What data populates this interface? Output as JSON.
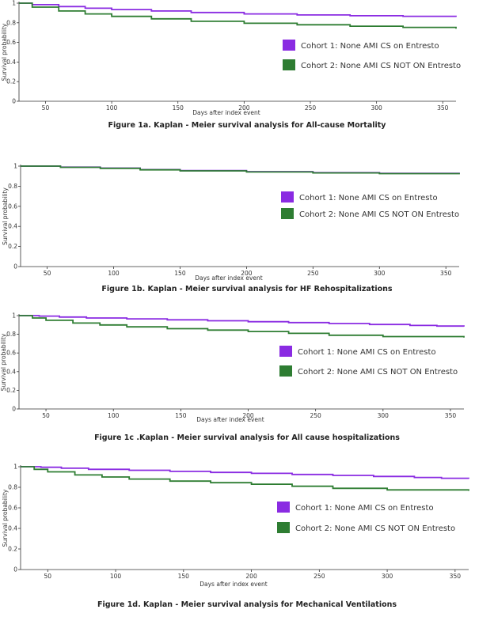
{
  "colors": {
    "cohort1": "#8a2be2",
    "cohort2": "#2e7d32"
  },
  "chart_data": [
    {
      "type": "line",
      "caption": "Figure 1a. Kaplan - Meier survival analysis for All-cause Mortality",
      "xlabel": "Days after index event",
      "ylabel": "Survival probability",
      "xlim": [
        30,
        360
      ],
      "ylim": [
        0,
        1
      ],
      "xticks": [
        50,
        100,
        150,
        200,
        250,
        300,
        350
      ],
      "yticks": [
        0,
        0.2,
        0.4,
        0.6,
        0.8,
        1
      ],
      "ytick_labels": [
        "0",
        "0.2",
        "0.4",
        "0.6",
        "0.8",
        "1"
      ],
      "legend": [
        "Cohort 1: None AMI CS on Entresto",
        "Cohort 2: None AMI CS NOT ON Entresto"
      ],
      "series": [
        {
          "name": "Cohort 1: None AMI CS on Entresto",
          "x": [
            30,
            40,
            60,
            80,
            100,
            130,
            160,
            200,
            240,
            280,
            320,
            360
          ],
          "y": [
            1.0,
            0.985,
            0.965,
            0.948,
            0.935,
            0.92,
            0.905,
            0.89,
            0.88,
            0.872,
            0.866,
            0.86
          ]
        },
        {
          "name": "Cohort 2: None AMI CS NOT ON Entresto",
          "x": [
            30,
            40,
            60,
            80,
            100,
            130,
            160,
            200,
            240,
            280,
            320,
            360
          ],
          "y": [
            1.0,
            0.96,
            0.92,
            0.89,
            0.865,
            0.84,
            0.815,
            0.795,
            0.78,
            0.765,
            0.753,
            0.74
          ]
        }
      ]
    },
    {
      "type": "line",
      "caption": "Figure 1b. Kaplan - Meier survival analysis for HF Rehospitalizations",
      "xlabel": "Days after index event",
      "ylabel": "Survival probability",
      "xlim": [
        30,
        360
      ],
      "ylim": [
        0,
        1
      ],
      "xticks": [
        50,
        100,
        150,
        200,
        250,
        300,
        350
      ],
      "yticks": [
        0,
        0.2,
        0.4,
        0.6,
        0.8,
        1
      ],
      "ytick_labels": [
        "0",
        "0.2",
        "0.4",
        "0.6",
        "0.8",
        "1"
      ],
      "legend": [
        "Cohort 1: None AMI CS on Entresto",
        "Cohort 2: None AMI CS NOT ON Entresto"
      ],
      "series": [
        {
          "name": "Cohort 1: None AMI CS on Entresto",
          "x": [
            30,
            60,
            90,
            120,
            150,
            200,
            250,
            300,
            360
          ],
          "y": [
            1.0,
            0.99,
            0.98,
            0.965,
            0.955,
            0.945,
            0.935,
            0.928,
            0.922
          ]
        },
        {
          "name": "Cohort 2: None AMI CS NOT ON Entresto",
          "x": [
            30,
            60,
            90,
            120,
            150,
            200,
            250,
            300,
            360
          ],
          "y": [
            1.0,
            0.988,
            0.978,
            0.963,
            0.953,
            0.942,
            0.932,
            0.925,
            0.918
          ]
        }
      ]
    },
    {
      "type": "line",
      "caption": "Figure 1c .Kaplan - Meier survival analysis for All cause hospitalizations",
      "xlabel": "Days after index event",
      "ylabel": "Survival probability",
      "xlim": [
        30,
        360
      ],
      "ylim": [
        0,
        1
      ],
      "xticks": [
        50,
        100,
        150,
        200,
        250,
        300,
        350
      ],
      "yticks": [
        0,
        0.2,
        0.4,
        0.6,
        0.8,
        1
      ],
      "ytick_labels": [
        "0",
        "0.2",
        "0.4",
        "0.6",
        "0.8",
        "1"
      ],
      "legend": [
        "Cohort 1: None AMI CS on Entresto",
        "Cohort 2: None AMI CS NOT ON Entresto"
      ],
      "series": [
        {
          "name": "Cohort 1: None AMI CS on Entresto",
          "x": [
            30,
            45,
            60,
            80,
            110,
            140,
            170,
            200,
            230,
            260,
            290,
            320,
            340,
            360
          ],
          "y": [
            1.0,
            0.995,
            0.985,
            0.975,
            0.965,
            0.955,
            0.945,
            0.935,
            0.925,
            0.915,
            0.905,
            0.895,
            0.888,
            0.882
          ]
        },
        {
          "name": "Cohort 2: None AMI CS NOT ON Entresto",
          "x": [
            30,
            40,
            50,
            70,
            90,
            110,
            140,
            170,
            200,
            230,
            260,
            300,
            360
          ],
          "y": [
            1.0,
            0.975,
            0.95,
            0.92,
            0.9,
            0.88,
            0.86,
            0.845,
            0.83,
            0.81,
            0.79,
            0.775,
            0.765
          ]
        }
      ]
    },
    {
      "type": "line",
      "caption": "Figure 1d. Kaplan - Meier survival analysis for Mechanical Ventilations",
      "xlabel": "Days after index event",
      "ylabel": "Survival probability",
      "xlim": [
        30,
        360
      ],
      "ylim": [
        0,
        1
      ],
      "xticks": [
        50,
        100,
        150,
        200,
        250,
        300,
        350
      ],
      "yticks": [
        0,
        0.2,
        0.4,
        0.6,
        0.8,
        1
      ],
      "ytick_labels": [
        "0",
        "0.2",
        "0.4",
        "0.6",
        "0.8",
        "1"
      ],
      "legend": [
        "Cohort 1: None AMI CS on Entresto",
        "Cohort 2: None AMI CS NOT ON Entresto"
      ],
      "series": [
        {
          "name": "Cohort 1: None AMI CS on Entresto",
          "x": [
            30,
            45,
            60,
            80,
            110,
            140,
            170,
            200,
            230,
            260,
            290,
            320,
            340,
            360
          ],
          "y": [
            1.0,
            0.995,
            0.985,
            0.975,
            0.965,
            0.955,
            0.945,
            0.935,
            0.925,
            0.915,
            0.905,
            0.895,
            0.888,
            0.882
          ]
        },
        {
          "name": "Cohort 2: None AMI CS NOT ON Entresto",
          "x": [
            30,
            40,
            50,
            70,
            90,
            110,
            140,
            170,
            200,
            230,
            260,
            300,
            360
          ],
          "y": [
            1.0,
            0.975,
            0.95,
            0.92,
            0.9,
            0.88,
            0.86,
            0.845,
            0.83,
            0.81,
            0.79,
            0.775,
            0.765
          ]
        }
      ]
    }
  ]
}
